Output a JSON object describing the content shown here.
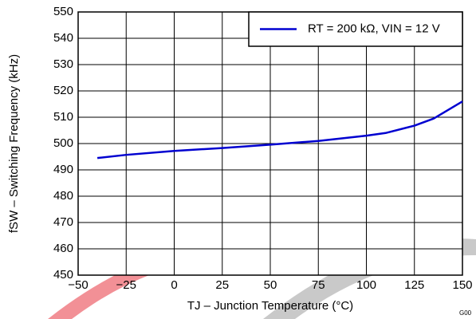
{
  "chart_data": {
    "type": "line",
    "x_label": "TJ – Junction Temperature (°C)",
    "y_label": "fSW – Switching Frequency (kHz)",
    "figure_id": "G00",
    "x": [
      -40,
      -25,
      0,
      25,
      50,
      75,
      100,
      110,
      125,
      135,
      150
    ],
    "series": [
      {
        "name": "RT = 200 kΩ, VIN = 12 V",
        "color": "#0000d0",
        "values": [
          494.5,
          495.7,
          497.2,
          498.3,
          499.6,
          501,
          503,
          504,
          506.8,
          509.5,
          516
        ]
      }
    ],
    "xlim": [
      -50,
      150
    ],
    "xticks": [
      {
        "value": -50,
        "label": "−50"
      },
      {
        "value": -25,
        "label": "−25"
      },
      0,
      25,
      50,
      75,
      100,
      125,
      150
    ],
    "ylim": [
      450,
      550
    ],
    "yticks": [
      450,
      460,
      470,
      480,
      490,
      500,
      510,
      520,
      530,
      540,
      550
    ],
    "grid": true,
    "legend": "upper right"
  }
}
